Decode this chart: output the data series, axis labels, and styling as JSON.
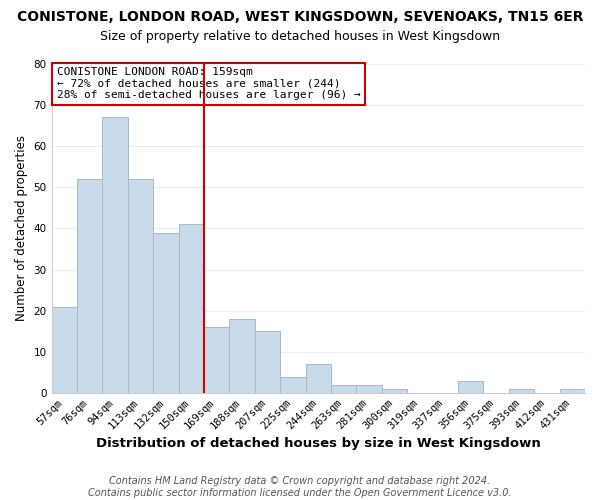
{
  "title": "CONISTONE, LONDON ROAD, WEST KINGSDOWN, SEVENOAKS, TN15 6ER",
  "subtitle": "Size of property relative to detached houses in West Kingsdown",
  "xlabel": "Distribution of detached houses by size in West Kingsdown",
  "ylabel": "Number of detached properties",
  "bar_color": "#c9daea",
  "bar_edge_color": "#a0bcd0",
  "categories": [
    "57sqm",
    "76sqm",
    "94sqm",
    "113sqm",
    "132sqm",
    "150sqm",
    "169sqm",
    "188sqm",
    "207sqm",
    "225sqm",
    "244sqm",
    "263sqm",
    "281sqm",
    "300sqm",
    "319sqm",
    "337sqm",
    "356sqm",
    "375sqm",
    "393sqm",
    "412sqm",
    "431sqm"
  ],
  "values": [
    21,
    52,
    67,
    52,
    39,
    41,
    16,
    18,
    15,
    4,
    7,
    2,
    2,
    1,
    0,
    0,
    3,
    0,
    1,
    0,
    1
  ],
  "vline_x": 5.5,
  "vline_color": "#cc0000",
  "annotation_text": "CONISTONE LONDON ROAD: 159sqm\n← 72% of detached houses are smaller (244)\n28% of semi-detached houses are larger (96) →",
  "annotation_box_color": "#ffffff",
  "annotation_box_edge_color": "#cc0000",
  "ylim": [
    0,
    80
  ],
  "yticks": [
    0,
    10,
    20,
    30,
    40,
    50,
    60,
    70,
    80
  ],
  "footer": "Contains HM Land Registry data © Crown copyright and database right 2024.\nContains public sector information licensed under the Open Government Licence v3.0.",
  "bg_color": "#ffffff",
  "grid_color": "#e8eef4",
  "title_fontsize": 10,
  "subtitle_fontsize": 9,
  "xlabel_fontsize": 9.5,
  "ylabel_fontsize": 8.5,
  "tick_fontsize": 7.5,
  "annotation_fontsize": 8,
  "footer_fontsize": 7
}
